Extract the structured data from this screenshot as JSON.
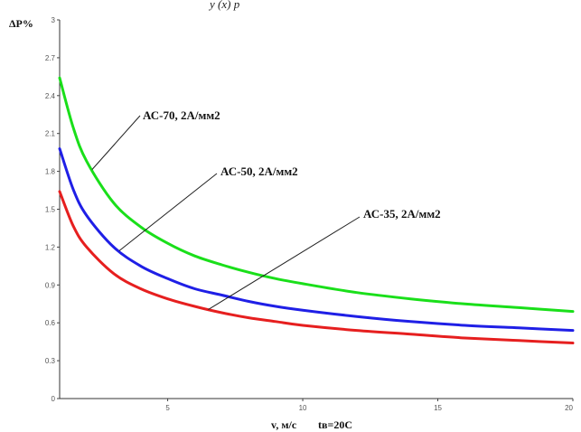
{
  "header": {
    "caption": "y (x) p"
  },
  "chart_data": {
    "type": "line",
    "title": "",
    "ylabel": "ΔP%",
    "xlabel": "v, м/с",
    "xlabel_extra": "tв=20С",
    "xlim": [
      1,
      20
    ],
    "ylim": [
      0,
      3
    ],
    "x_ticks": [
      5,
      10,
      15,
      20
    ],
    "x_tick_labels": [
      "5",
      "10",
      "15",
      "20"
    ],
    "y_ticks": [
      0,
      0.3,
      0.6,
      0.9,
      1.2,
      1.5,
      1.8,
      2.1,
      2.4,
      2.7,
      3
    ],
    "y_tick_labels": [
      "0",
      "0.3",
      "0.6",
      "0.9",
      "1.2",
      "1.5",
      "1.8",
      "2.1",
      "2.4",
      "2.7",
      "3"
    ],
    "grid": false,
    "series": [
      {
        "name": "АС-70, 2А/мм2",
        "color": "#1adf1a",
        "x": [
          1,
          1.5,
          2,
          3,
          4,
          5,
          6,
          7,
          8,
          9,
          10,
          12,
          14,
          16,
          18,
          20
        ],
        "y": [
          2.54,
          2.15,
          1.88,
          1.55,
          1.36,
          1.23,
          1.13,
          1.06,
          1.0,
          0.95,
          0.91,
          0.84,
          0.79,
          0.75,
          0.72,
          0.69
        ]
      },
      {
        "name": "АС-50, 2А/мм2",
        "color": "#1f1fe6",
        "x": [
          1,
          1.5,
          2,
          3,
          4,
          5,
          6,
          7,
          8,
          9,
          10,
          12,
          14,
          16,
          18,
          20
        ],
        "y": [
          1.98,
          1.66,
          1.45,
          1.2,
          1.05,
          0.95,
          0.87,
          0.82,
          0.77,
          0.73,
          0.7,
          0.65,
          0.61,
          0.58,
          0.56,
          0.54
        ]
      },
      {
        "name": "АС-35, 2А/мм2",
        "color": "#e61f1f",
        "x": [
          1,
          1.5,
          2,
          3,
          4,
          5,
          6,
          7,
          8,
          9,
          10,
          12,
          14,
          16,
          18,
          20
        ],
        "y": [
          1.64,
          1.37,
          1.2,
          0.99,
          0.87,
          0.79,
          0.73,
          0.68,
          0.64,
          0.61,
          0.58,
          0.54,
          0.51,
          0.48,
          0.46,
          0.44
        ]
      }
    ],
    "annotations": [
      {
        "text": "АС-70, 2А/мм2",
        "series": 0,
        "at_x": 2.2
      },
      {
        "text": "АС-50, 2А/мм2",
        "series": 1,
        "at_x": 3.2
      },
      {
        "text": "АС-35, 2А/мм2",
        "series": 2,
        "at_x": 6.5
      }
    ]
  }
}
